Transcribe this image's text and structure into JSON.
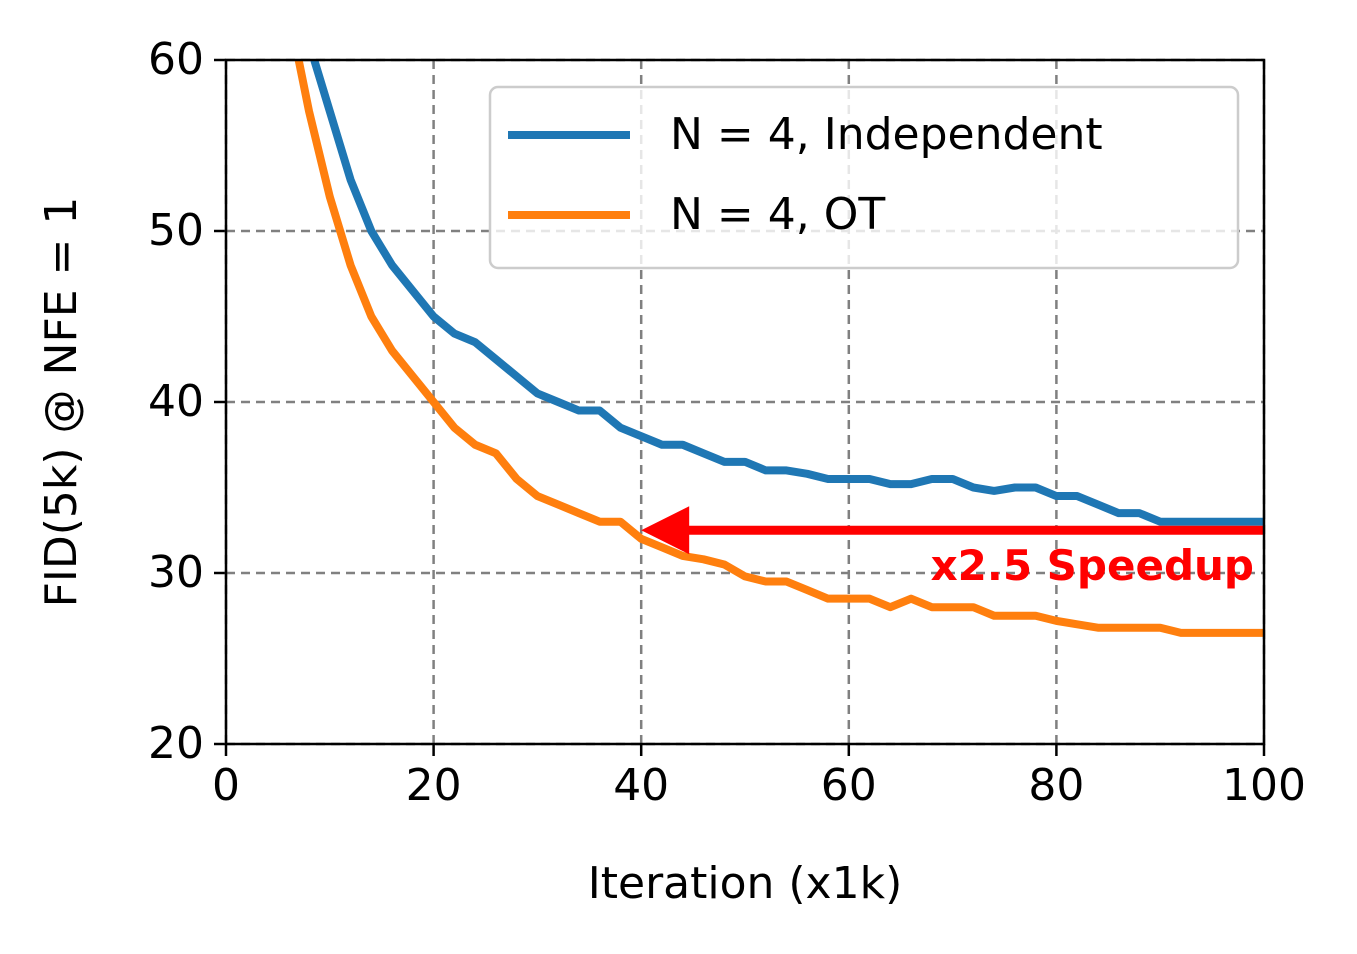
{
  "chart_data": {
    "type": "line",
    "xlabel": "Iteration (x1k)",
    "ylabel": "FID(5k) @ NFE = 1",
    "xlim": [
      0,
      100
    ],
    "xticks": [
      0,
      20,
      40,
      60,
      80,
      100
    ],
    "ylim": [
      20,
      60
    ],
    "yticks": [
      20,
      30,
      40,
      50,
      60
    ],
    "grid": true,
    "legend": "upper right",
    "series": [
      {
        "name": "N = 4, Independent",
        "color": "#1f77b4",
        "x": [
          8.5,
          10,
          12,
          14,
          16,
          18,
          20,
          22,
          24,
          26,
          28,
          30,
          32,
          34,
          36,
          38,
          40,
          42,
          44,
          46,
          48,
          50,
          52,
          54,
          56,
          58,
          60,
          62,
          64,
          66,
          68,
          70,
          72,
          74,
          76,
          78,
          80,
          82,
          84,
          86,
          88,
          90,
          92,
          94,
          96,
          98,
          100
        ],
        "values": [
          60,
          57,
          53,
          50,
          48,
          46.5,
          45,
          44,
          43.5,
          42.5,
          41.5,
          40.5,
          40,
          39.5,
          39.5,
          38.5,
          38,
          37.5,
          37.5,
          37,
          36.5,
          36.5,
          36,
          36,
          35.8,
          35.5,
          35.5,
          35.5,
          35.2,
          35.2,
          35.5,
          35.5,
          35,
          34.8,
          35,
          35,
          34.5,
          34.5,
          34,
          33.5,
          33.5,
          33,
          33,
          33,
          33,
          33,
          33
        ]
      },
      {
        "name": "N = 4, OT",
        "color": "#ff7f0e",
        "x": [
          7,
          8,
          10,
          12,
          14,
          16,
          18,
          20,
          22,
          24,
          26,
          28,
          30,
          32,
          34,
          36,
          38,
          40,
          42,
          44,
          46,
          48,
          50,
          52,
          54,
          56,
          58,
          60,
          62,
          64,
          66,
          68,
          70,
          72,
          74,
          76,
          78,
          80,
          82,
          84,
          86,
          88,
          90,
          92,
          94,
          96,
          98,
          100
        ],
        "values": [
          60,
          57,
          52,
          48,
          45,
          43,
          41.5,
          40,
          38.5,
          37.5,
          37,
          35.5,
          34.5,
          34,
          33.5,
          33,
          33,
          32,
          31.5,
          31,
          30.8,
          30.5,
          29.8,
          29.5,
          29.5,
          29,
          28.5,
          28.5,
          28.5,
          28,
          28.5,
          28,
          28,
          28,
          27.5,
          27.5,
          27.5,
          27.2,
          27,
          26.8,
          26.8,
          26.8,
          26.8,
          26.5,
          26.5,
          26.5,
          26.5,
          26.5
        ]
      }
    ],
    "annotations": [
      {
        "text": "x2.5 Speedup",
        "color": "#ff0000",
        "x_start": 100,
        "x_end": 40,
        "y": 32.5
      }
    ]
  }
}
